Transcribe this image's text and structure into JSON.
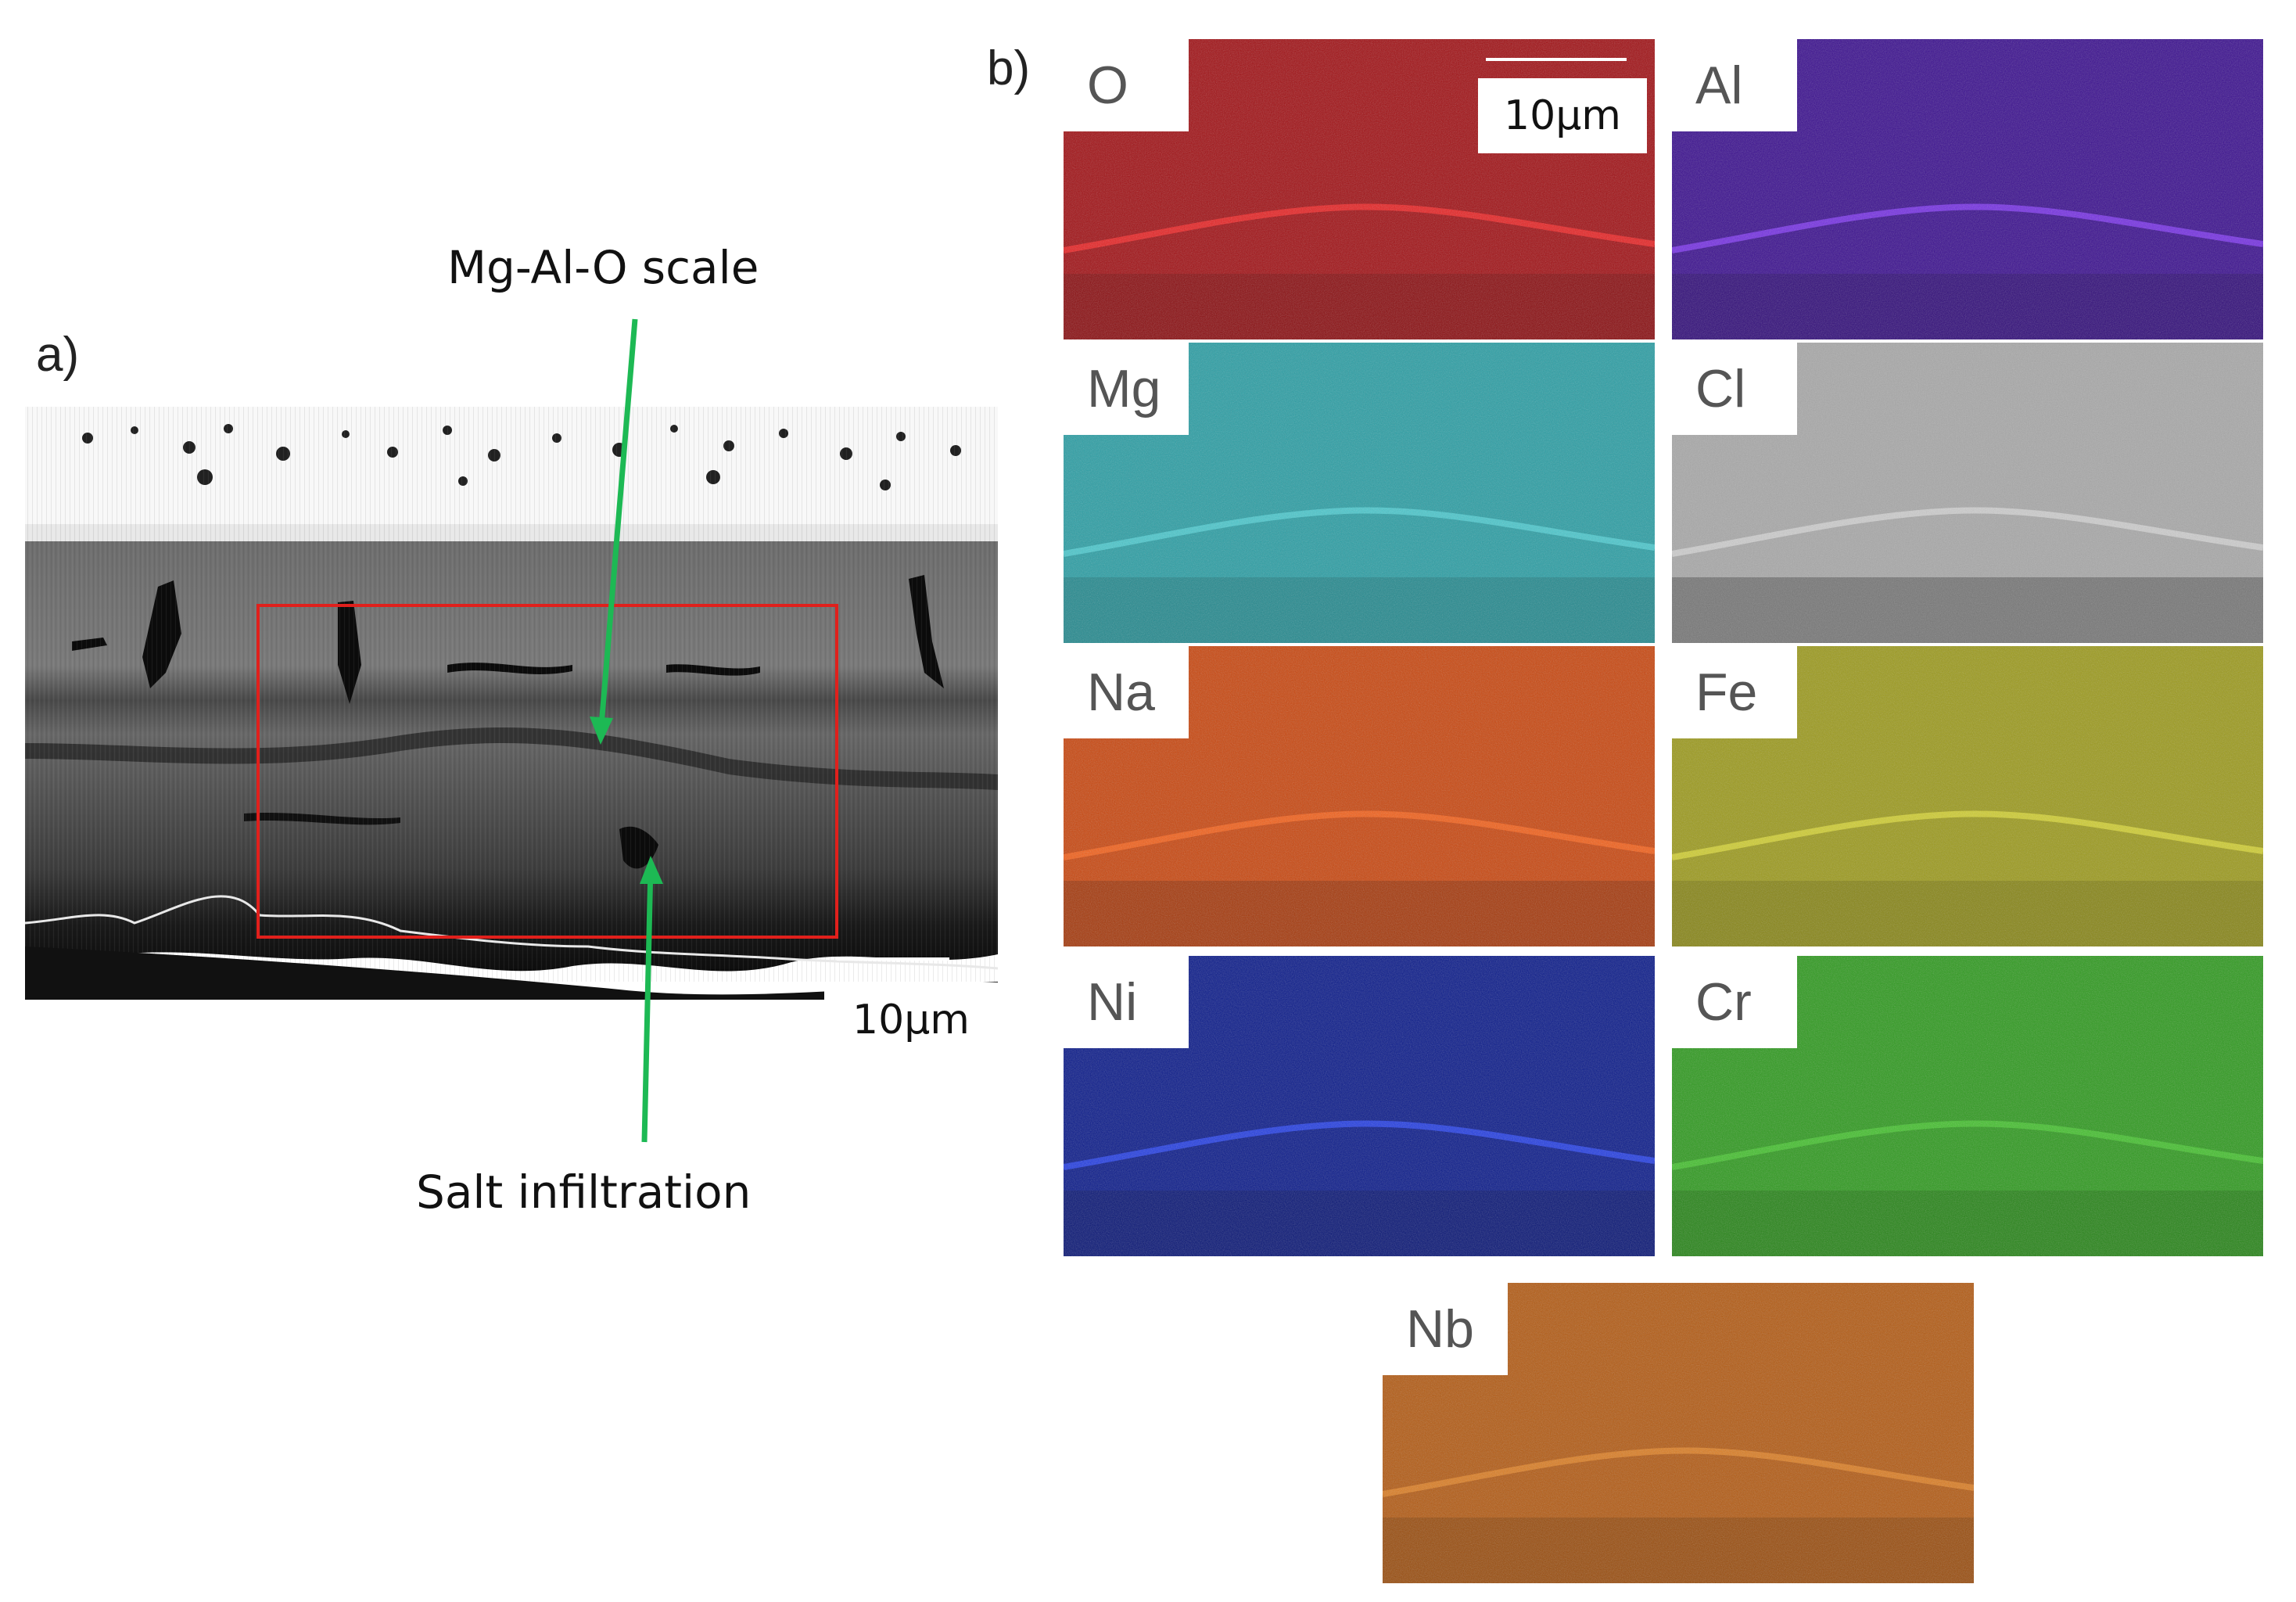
{
  "figure": {
    "panel_a_label": "a)",
    "panel_b_label": "b)",
    "annotations": {
      "top": "Mg-Al-O scale",
      "bottom": "Salt infiltration"
    },
    "arrow_color": "#1db954",
    "roi_color": "#e0201c",
    "scale_bar": "10µm"
  },
  "eds_maps": [
    {
      "element": "O",
      "base": "#a11014",
      "dark": "#6e0a0c",
      "accent": "#ff2a2a"
    },
    {
      "element": "Al",
      "base": "#3a0f8f",
      "dark": "#26085f",
      "accent": "#8a3cff"
    },
    {
      "element": "Mg",
      "base": "#2a9ea4",
      "dark": "#1a6f74",
      "accent": "#55d4da"
    },
    {
      "element": "Cl",
      "base": "#a8a8a8",
      "dark": "#3a3a3a",
      "accent": "#d9d9d9"
    },
    {
      "element": "Na",
      "base": "#c9460e",
      "dark": "#7a2808",
      "accent": "#ff6a1f"
    },
    {
      "element": "Fe",
      "base": "#9c9a1c",
      "dark": "#6e6d10",
      "accent": "#e0dd3a"
    },
    {
      "element": "Ni",
      "base": "#0a1a8a",
      "dark": "#06105c",
      "accent": "#2d4bff"
    },
    {
      "element": "Cr",
      "base": "#2e9a1e",
      "dark": "#1c6a10",
      "accent": "#4ccc34"
    },
    {
      "element": "Nb",
      "base": "#b35a12",
      "dark": "#7a3c08",
      "accent": "#e88a2a"
    }
  ]
}
